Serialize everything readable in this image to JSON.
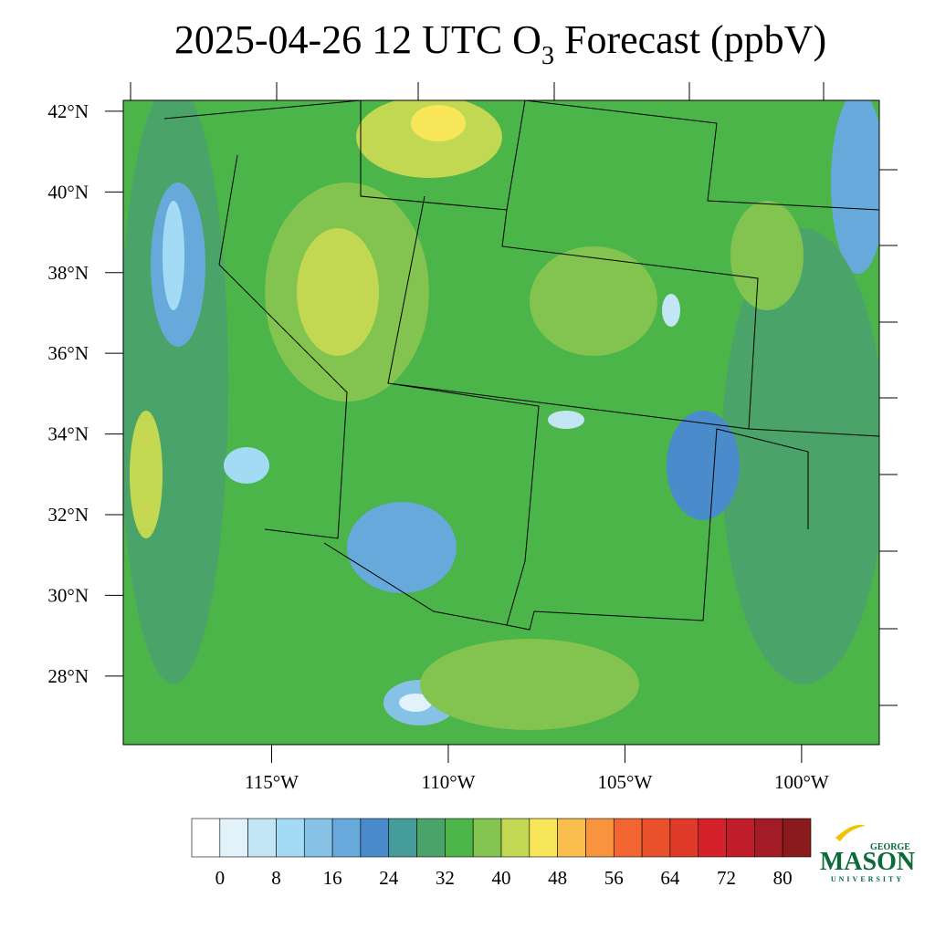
{
  "title": {
    "main": "2025-04-26 12 UTC O",
    "subscript": "3",
    "rest": " Forecast (ppbV)"
  },
  "map": {
    "lat_lim": [
      26.3,
      42.27
    ],
    "lon_lim": [
      -119.2,
      -97.8
    ],
    "lat_ticks": [
      {
        "value": 42,
        "label": "42°N"
      },
      {
        "value": 40,
        "label": "40°N"
      },
      {
        "value": 38,
        "label": "38°N"
      },
      {
        "value": 36,
        "label": "36°N"
      },
      {
        "value": 34,
        "label": "34°N"
      },
      {
        "value": 32,
        "label": "32°N"
      },
      {
        "value": 30,
        "label": "30°N"
      },
      {
        "value": 28,
        "label": "28°N"
      }
    ],
    "lon_ticks": [
      {
        "value": -115,
        "label": "115°W"
      },
      {
        "value": -110,
        "label": "110°W"
      },
      {
        "value": -105,
        "label": "105°W"
      },
      {
        "value": -100,
        "label": "100°W"
      }
    ]
  },
  "colorbar": {
    "clim": [
      -4,
      84
    ],
    "colors": [
      "#ffffff",
      "#e1f2fb",
      "#c3e6f6",
      "#a2dbf3",
      "#86c1e6",
      "#68a9dc",
      "#4a8ccb",
      "#469b9b",
      "#4aa46a",
      "#4cb549",
      "#82c44f",
      "#c2d752",
      "#f8e659",
      "#f9bd4d",
      "#f8943d",
      "#f26530",
      "#e9502c",
      "#e03a2a",
      "#d52129",
      "#c01d2a",
      "#a31b25",
      "#8b1a1d"
    ],
    "ticks": [
      0,
      8,
      16,
      24,
      32,
      40,
      48,
      56,
      64,
      72,
      80
    ]
  },
  "logo": {
    "top": "GEORGE",
    "main": "MASON",
    "bottom": "UNIVERSITY"
  }
}
